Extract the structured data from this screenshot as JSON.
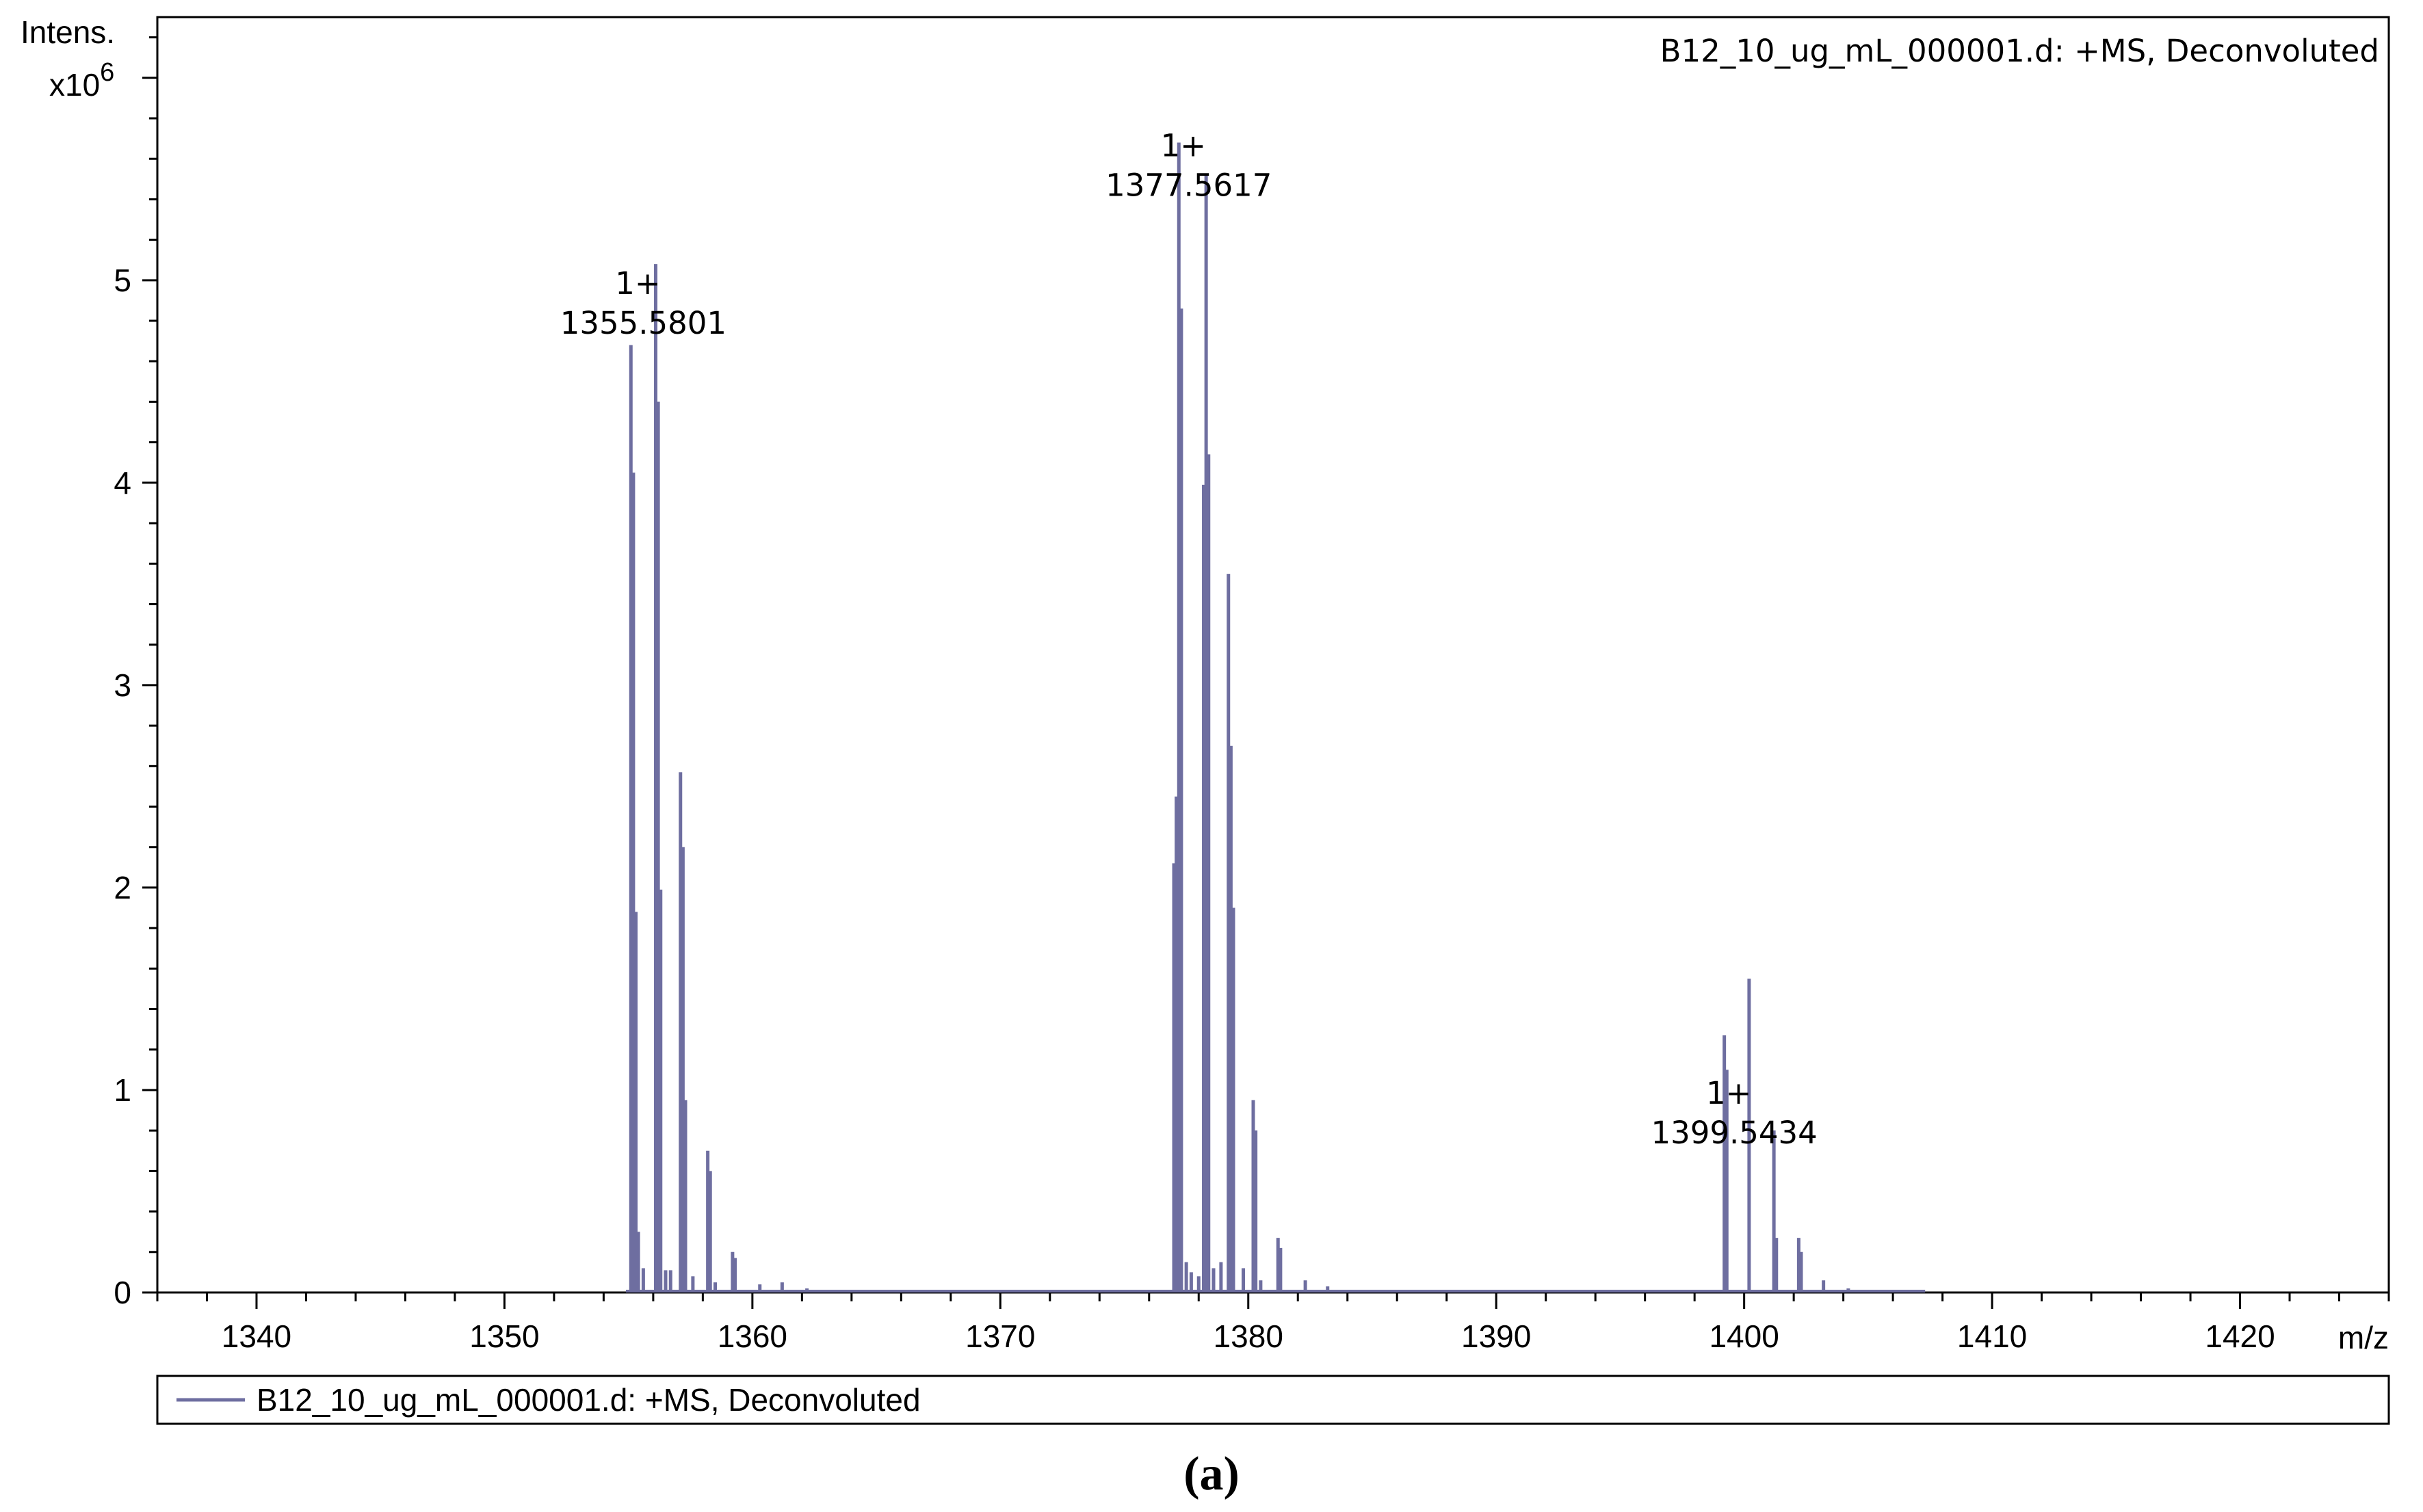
{
  "chart_data": {
    "type": "line",
    "title": "B12_10_ug_mL_000001.d: +MS, Deconvoluted",
    "ylabel": "Intens.",
    "y_multiplier": "x10",
    "y_multiplier_exponent": "6",
    "xlabel": "m/z",
    "xlim": [
      1336,
      1426
    ],
    "ylim": [
      0,
      6.3
    ],
    "x_ticks": [
      1340,
      1350,
      1360,
      1370,
      1380,
      1390,
      1400,
      1410,
      1420
    ],
    "y_ticks": [
      0,
      1,
      2,
      3,
      4,
      5
    ],
    "grid": false,
    "series": [
      {
        "name": "B12_10_ug_mL_000001.d: +MS, Deconvoluted",
        "color": "#6e6ea0",
        "baseline_x": [
          1354.9,
          1407.3
        ],
        "peaks": [
          [
            1355.1,
            4.68
          ],
          [
            1355.2,
            4.05
          ],
          [
            1355.3,
            1.88
          ],
          [
            1355.4,
            0.3
          ],
          [
            1355.6,
            0.12
          ],
          [
            1356.1,
            5.08
          ],
          [
            1356.2,
            4.4
          ],
          [
            1356.3,
            1.99
          ],
          [
            1356.5,
            0.11
          ],
          [
            1356.7,
            0.11
          ],
          [
            1357.1,
            2.57
          ],
          [
            1357.2,
            2.2
          ],
          [
            1357.3,
            0.95
          ],
          [
            1357.6,
            0.08
          ],
          [
            1358.2,
            0.7
          ],
          [
            1358.3,
            0.6
          ],
          [
            1358.5,
            0.05
          ],
          [
            1359.2,
            0.2
          ],
          [
            1359.3,
            0.17
          ],
          [
            1360.3,
            0.04
          ],
          [
            1361.2,
            0.05
          ],
          [
            1362.2,
            0.02
          ],
          [
            1377.0,
            2.12
          ],
          [
            1377.1,
            2.45
          ],
          [
            1377.2,
            5.68
          ],
          [
            1377.3,
            4.86
          ],
          [
            1377.5,
            0.15
          ],
          [
            1377.7,
            0.1
          ],
          [
            1378.0,
            0.08
          ],
          [
            1378.2,
            3.99
          ],
          [
            1378.3,
            5.52
          ],
          [
            1378.4,
            4.14
          ],
          [
            1378.6,
            0.12
          ],
          [
            1378.9,
            0.15
          ],
          [
            1379.2,
            3.55
          ],
          [
            1379.3,
            2.7
          ],
          [
            1379.4,
            1.9
          ],
          [
            1379.8,
            0.12
          ],
          [
            1380.2,
            0.95
          ],
          [
            1380.3,
            0.8
          ],
          [
            1380.5,
            0.06
          ],
          [
            1381.2,
            0.27
          ],
          [
            1381.3,
            0.22
          ],
          [
            1382.3,
            0.06
          ],
          [
            1383.2,
            0.03
          ],
          [
            1399.2,
            1.27
          ],
          [
            1399.3,
            1.1
          ],
          [
            1400.2,
            1.55
          ],
          [
            1401.2,
            0.8
          ],
          [
            1401.3,
            0.27
          ],
          [
            1402.2,
            0.27
          ],
          [
            1402.3,
            0.2
          ],
          [
            1403.2,
            0.06
          ],
          [
            1404.2,
            0.02
          ]
        ]
      }
    ],
    "annotations": [
      {
        "charge": "1+",
        "mz_label": "1355.5801",
        "x": 1355.6,
        "y": 5.0
      },
      {
        "charge": "1+",
        "mz_label": "1377.5617",
        "x": 1377.6,
        "y": 5.68
      },
      {
        "charge": "1+",
        "mz_label": "1399.5434",
        "x": 1399.6,
        "y": 1.0
      }
    ],
    "legend_position": "bottom",
    "legend_label": "B12_10_ug_mL_000001.d: +MS, Deconvoluted",
    "panel_label": "(a)"
  }
}
